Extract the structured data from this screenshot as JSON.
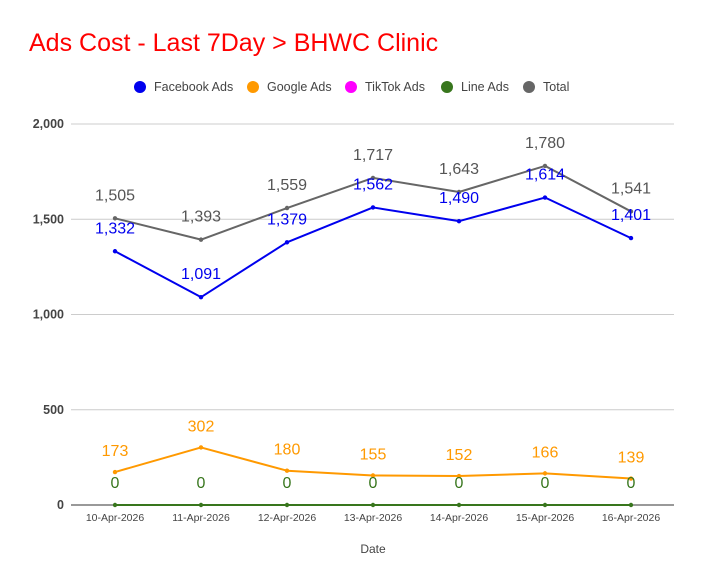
{
  "chart_data": {
    "type": "line",
    "title": "Ads Cost - Last 7Day > BHWC Clinic",
    "xlabel": "Date",
    "ylabel": "",
    "categories": [
      "10-Apr-2026",
      "11-Apr-2026",
      "12-Apr-2026",
      "13-Apr-2026",
      "14-Apr-2026",
      "15-Apr-2026",
      "16-Apr-2026"
    ],
    "ylim": [
      0,
      2000
    ],
    "yticks": [
      0,
      500,
      1000,
      1500,
      2000
    ],
    "ytick_labels": [
      "0",
      "500",
      "1,000",
      "1,500",
      "2,000"
    ],
    "grid": true,
    "legend_position": "top",
    "series": [
      {
        "name": "Facebook Ads",
        "color": "#0000ee",
        "values": [
          1332,
          1091,
          1379,
          1562,
          1490,
          1614,
          1401
        ],
        "labels": [
          "1,332",
          "1,091",
          "1,379",
          "1,562",
          "1,490",
          "1,614",
          "1,401"
        ]
      },
      {
        "name": "Google Ads",
        "color": "#ff9900",
        "values": [
          173,
          302,
          180,
          155,
          152,
          166,
          139
        ],
        "labels": [
          "173",
          "302",
          "180",
          "155",
          "152",
          "166",
          "139"
        ]
      },
      {
        "name": "TikTok Ads",
        "color": "#ff00ff",
        "values": [
          null,
          null,
          null,
          null,
          null,
          null,
          null
        ],
        "labels": []
      },
      {
        "name": "Line Ads",
        "color": "#38761d",
        "values": [
          0,
          0,
          0,
          0,
          0,
          0,
          0
        ],
        "labels": [
          "0",
          "0",
          "0",
          "0",
          "0",
          "0",
          "0"
        ]
      },
      {
        "name": "Total",
        "color": "#666666",
        "values": [
          1505,
          1393,
          1559,
          1717,
          1643,
          1780,
          1541
        ],
        "labels": [
          "1,505",
          "1,393",
          "1,559",
          "1,717",
          "1,643",
          "1,780",
          "1,541"
        ]
      }
    ]
  }
}
